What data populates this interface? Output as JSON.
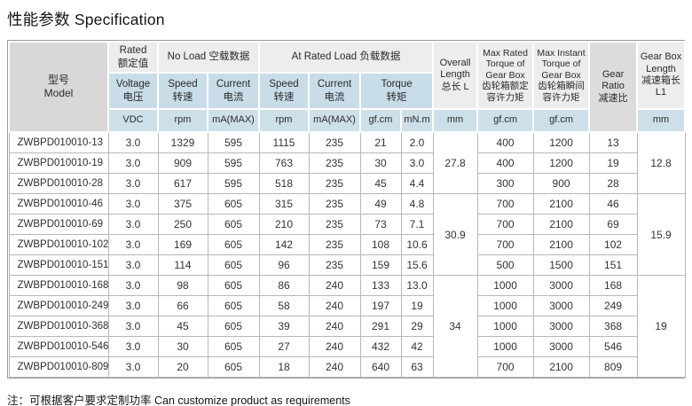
{
  "page": {
    "title": "性能参数 Specification",
    "note": "注：可根据客户要求定制功率  Can customize product as requirements"
  },
  "table": {
    "headers": {
      "model": "型号\nModel",
      "rated": "Rated\n额定值",
      "no_load": "No Load 空载数据",
      "at_rated_load": "At Rated Load 负载数据",
      "overall_length": "Overall\nLength\n总长 L",
      "max_rated_torque": "Max Rated\nTorque of\nGear Box\n齿轮箱额定\n容许力矩",
      "max_instant_torque": "Max Instant\nTorque of\nGear Box\n齿轮箱瞬间\n容许力矩",
      "gear_ratio": "Gear Ratio\n减速比",
      "gear_box_length": "Gear Box\nLength\n减速箱长\nL1",
      "voltage": "Voltage\n电压",
      "speed": "Speed\n转速",
      "current": "Current\n电流",
      "torque": "Torque\n转矩",
      "units": {
        "vdc": "VDC",
        "rpm": "rpm",
        "ma_max": "mA(MAX)",
        "gfcm": "gf.cm",
        "mnm": "mN.m",
        "mm": "mm"
      }
    },
    "rows": [
      {
        "model": "ZWBPD010010-13",
        "voltage": "3.0",
        "no_load_speed": "1329",
        "no_load_current": "595",
        "rated_speed": "1115",
        "rated_current": "235",
        "torque_gfcm": "21",
        "torque_mnm": "2.0",
        "max_rated_torque": "400",
        "max_instant_torque": "1200",
        "gear_ratio": "13"
      },
      {
        "model": "ZWBPD010010-19",
        "voltage": "3.0",
        "no_load_speed": "909",
        "no_load_current": "595",
        "rated_speed": "763",
        "rated_current": "235",
        "torque_gfcm": "30",
        "torque_mnm": "3.0",
        "max_rated_torque": "400",
        "max_instant_torque": "1200",
        "gear_ratio": "19"
      },
      {
        "model": "ZWBPD010010-28",
        "voltage": "3.0",
        "no_load_speed": "617",
        "no_load_current": "595",
        "rated_speed": "518",
        "rated_current": "235",
        "torque_gfcm": "45",
        "torque_mnm": "4.4",
        "max_rated_torque": "300",
        "max_instant_torque": "900",
        "gear_ratio": "28"
      },
      {
        "model": "ZWBPD010010-46",
        "voltage": "3.0",
        "no_load_speed": "375",
        "no_load_current": "605",
        "rated_speed": "315",
        "rated_current": "235",
        "torque_gfcm": "49",
        "torque_mnm": "4.8",
        "max_rated_torque": "700",
        "max_instant_torque": "2100",
        "gear_ratio": "46"
      },
      {
        "model": "ZWBPD010010-69",
        "voltage": "3.0",
        "no_load_speed": "250",
        "no_load_current": "605",
        "rated_speed": "210",
        "rated_current": "235",
        "torque_gfcm": "73",
        "torque_mnm": "7.1",
        "max_rated_torque": "700",
        "max_instant_torque": "2100",
        "gear_ratio": "69"
      },
      {
        "model": "ZWBPD010010-102",
        "voltage": "3.0",
        "no_load_speed": "169",
        "no_load_current": "605",
        "rated_speed": "142",
        "rated_current": "235",
        "torque_gfcm": "108",
        "torque_mnm": "10.6",
        "max_rated_torque": "700",
        "max_instant_torque": "2100",
        "gear_ratio": "102"
      },
      {
        "model": "ZWBPD010010-151",
        "voltage": "3.0",
        "no_load_speed": "114",
        "no_load_current": "605",
        "rated_speed": "96",
        "rated_current": "235",
        "torque_gfcm": "159",
        "torque_mnm": "15.6",
        "max_rated_torque": "500",
        "max_instant_torque": "1500",
        "gear_ratio": "151"
      },
      {
        "model": "ZWBPD010010-168",
        "voltage": "3.0",
        "no_load_speed": "98",
        "no_load_current": "605",
        "rated_speed": "86",
        "rated_current": "240",
        "torque_gfcm": "133",
        "torque_mnm": "13.0",
        "max_rated_torque": "1000",
        "max_instant_torque": "3000",
        "gear_ratio": "168"
      },
      {
        "model": "ZWBPD010010-249",
        "voltage": "3.0",
        "no_load_speed": "66",
        "no_load_current": "605",
        "rated_speed": "58",
        "rated_current": "240",
        "torque_gfcm": "197",
        "torque_mnm": "19",
        "max_rated_torque": "1000",
        "max_instant_torque": "3000",
        "gear_ratio": "249"
      },
      {
        "model": "ZWBPD010010-368",
        "voltage": "3.0",
        "no_load_speed": "45",
        "no_load_current": "605",
        "rated_speed": "39",
        "rated_current": "240",
        "torque_gfcm": "291",
        "torque_mnm": "29",
        "max_rated_torque": "1000",
        "max_instant_torque": "3000",
        "gear_ratio": "368"
      },
      {
        "model": "ZWBPD010010-546",
        "voltage": "3.0",
        "no_load_speed": "30",
        "no_load_current": "605",
        "rated_speed": "27",
        "rated_current": "240",
        "torque_gfcm": "432",
        "torque_mnm": "42",
        "max_rated_torque": "1000",
        "max_instant_torque": "3000",
        "gear_ratio": "546"
      },
      {
        "model": "ZWBPD010010-809",
        "voltage": "3.0",
        "no_load_speed": "20",
        "no_load_current": "605",
        "rated_speed": "18",
        "rated_current": "240",
        "torque_gfcm": "640",
        "torque_mnm": "63",
        "max_rated_torque": "700",
        "max_instant_torque": "2100",
        "gear_ratio": "809"
      }
    ],
    "groups": [
      {
        "span": 3,
        "overall_length": "27.8",
        "gear_box_length": "12.8"
      },
      {
        "span": 4,
        "overall_length": "30.9",
        "gear_box_length": "15.9"
      },
      {
        "span": 5,
        "overall_length": "34",
        "gear_box_length": "19"
      }
    ],
    "colors": {
      "header_blue": "#c9dde9",
      "header_gray": "#d8d8d8",
      "header_light_gray": "#ededed",
      "border": "#b7b7b7"
    }
  }
}
